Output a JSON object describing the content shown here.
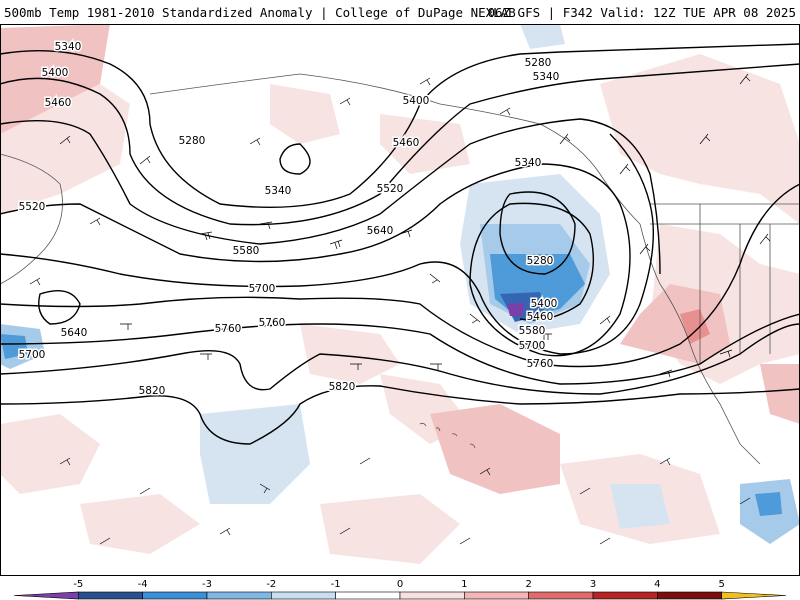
{
  "header": {
    "title": "500mb Temp 1981-2010 Standardized Anomaly | College of DuPage NEXLAB",
    "run_info": "06Z GFS | F342 Valid: 12Z TUE APR 08 2025"
  },
  "contour_labels": [
    {
      "id": "c5340a",
      "text": "5340"
    },
    {
      "id": "c5400a",
      "text": "5400"
    },
    {
      "id": "c5460a",
      "text": "5460"
    },
    {
      "id": "c5520a",
      "text": "5520"
    },
    {
      "id": "c5280a",
      "text": "5280"
    },
    {
      "id": "c5340b",
      "text": "5340"
    },
    {
      "id": "c5520b",
      "text": "5520"
    },
    {
      "id": "c5580a",
      "text": "5580"
    },
    {
      "id": "c5640a",
      "text": "5640"
    },
    {
      "id": "c5700a",
      "text": "5700"
    },
    {
      "id": "c5640b",
      "text": "5640"
    },
    {
      "id": "c5700b",
      "text": "5700"
    },
    {
      "id": "c5760a",
      "text": "5760"
    },
    {
      "id": "c5760b",
      "text": "5760"
    },
    {
      "id": "c5820a",
      "text": "5820"
    },
    {
      "id": "c5820b",
      "text": "5820"
    },
    {
      "id": "c5400b",
      "text": "5400"
    },
    {
      "id": "c5460b",
      "text": "5460"
    },
    {
      "id": "c5280b",
      "text": "5280"
    },
    {
      "id": "c5340c",
      "text": "5340"
    },
    {
      "id": "c5340d",
      "text": "5340"
    },
    {
      "id": "c5280c",
      "text": "5280"
    },
    {
      "id": "c5400c",
      "text": "5400"
    },
    {
      "id": "c5460c",
      "text": "5460"
    },
    {
      "id": "c5580b",
      "text": "5580"
    },
    {
      "id": "c5700c",
      "text": "5700"
    },
    {
      "id": "c5760c",
      "text": "5760"
    }
  ],
  "colorbar": {
    "ticks": [
      "-5",
      "-4",
      "-3",
      "-2",
      "-1",
      "0",
      "1",
      "2",
      "3",
      "4",
      "5"
    ],
    "colors": [
      "#7b3fa8",
      "#2a4f8f",
      "#3b8fd6",
      "#7fb6e3",
      "#c9def0",
      "#ffffff",
      "#f7e0e0",
      "#f3b5b5",
      "#e06b6b",
      "#b52525",
      "#7a0f0f",
      "#f0c020"
    ]
  },
  "legend_colors": {
    "neg_light": "#d6e4f2",
    "neg_mid": "#a6cbea",
    "neg_strong": "#4f9ad8",
    "neg_deep": "#3566b3",
    "neg_extreme": "#7b3fa8",
    "pos_light": "#f8e3e3",
    "pos_mid": "#f1c2c2",
    "pos_strong": "#e88f8f"
  }
}
